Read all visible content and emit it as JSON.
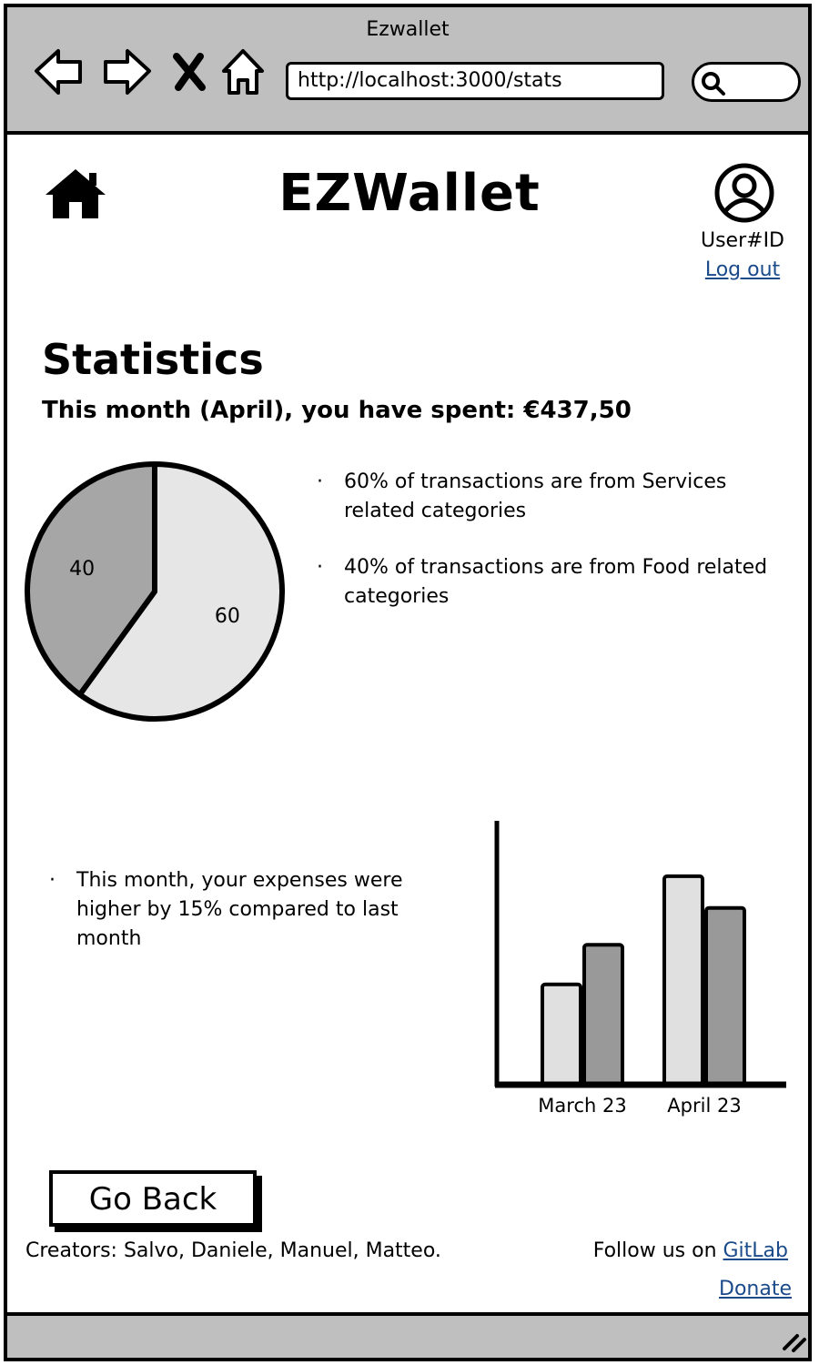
{
  "window": {
    "title": "Ezwallet"
  },
  "browser": {
    "url": "http://localhost:3000/stats",
    "nav_icons": [
      "back-arrow-icon",
      "forward-arrow-icon",
      "close-icon",
      "home-icon"
    ],
    "search_icon": "search-icon"
  },
  "header": {
    "brand": "EZWallet",
    "home_icon": "home-icon",
    "user_icon": "user-avatar-icon",
    "user_id": "User#ID",
    "logout_label": "Log out"
  },
  "main": {
    "title": "Statistics",
    "summary": "This month (April), you have spent: €437,50",
    "pie_bullets": [
      "60% of transactions are from Services related categories",
      "40% of transactions are from Food related categories"
    ],
    "bar_bullets": [
      "This month, your expenses were higher by 15% compared to last month"
    ]
  },
  "chart_data": [
    {
      "type": "pie",
      "slices": [
        {
          "label": "60",
          "value": 60,
          "color": "#e6e6e6"
        },
        {
          "label": "40",
          "value": 40,
          "color": "#a6a6a6"
        }
      ]
    },
    {
      "type": "bar",
      "categories": [
        "March 23",
        "April 23"
      ],
      "series": [
        {
          "values": [
            38,
            79
          ],
          "color": "#e0e0e0"
        },
        {
          "values": [
            53,
            67
          ],
          "color": "#999999"
        }
      ],
      "ylim": [
        0,
        100
      ]
    }
  ],
  "actions": {
    "go_back_label": "Go Back"
  },
  "footer": {
    "creators": "Creators: Salvo, Daniele, Manuel, Matteo.",
    "follow_prefix": "Follow us on ",
    "gitlab_label": "GitLab",
    "donate_label": "Donate"
  },
  "colors": {
    "chrome": "#bfbfbf",
    "link": "#1a4a8a"
  }
}
